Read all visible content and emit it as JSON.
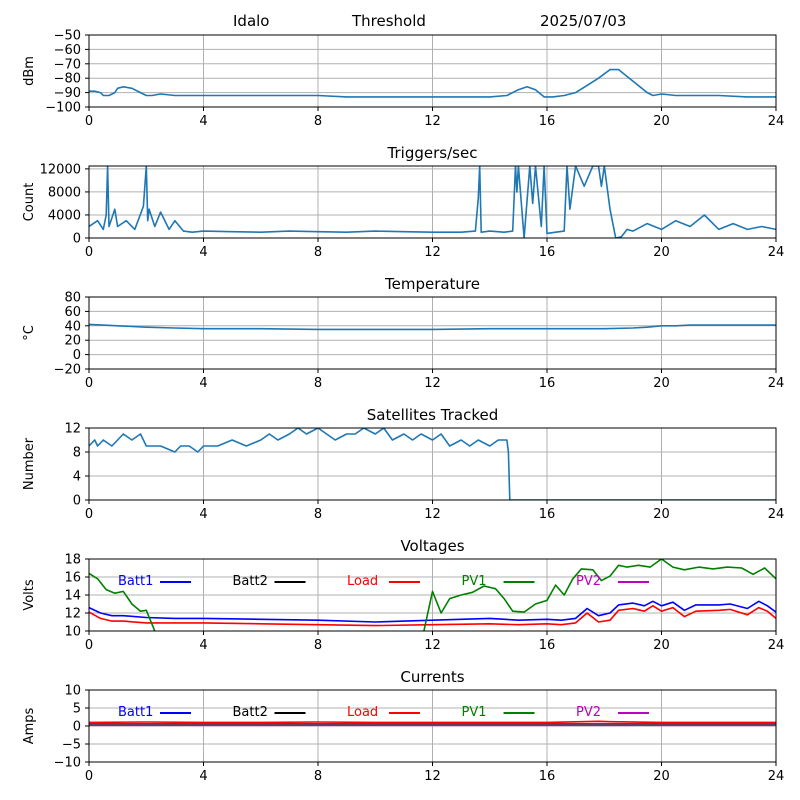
{
  "header": {
    "site": "Idalo",
    "title": "Threshold",
    "date": "2025/07/03"
  },
  "colors": {
    "series": "#1f77b4",
    "grid": "#b0b0b0",
    "batt1": "#0000ff",
    "batt2": "#000000",
    "load": "#ff0000",
    "pv1": "#008000",
    "pv2": "#bf00bf"
  },
  "chart_data": [
    {
      "type": "line",
      "title": "",
      "ylabel": "dBm",
      "xlim": [
        0,
        24
      ],
      "ylim": [
        -100,
        -50
      ],
      "xticks": [
        0,
        4,
        8,
        12,
        16,
        20,
        24
      ],
      "yticks": [
        -100,
        -90,
        -80,
        -70,
        -60,
        -50
      ],
      "grid": true,
      "series": [
        {
          "color": "#1f77b4",
          "x": [
            0,
            0.2,
            0.4,
            0.5,
            0.7,
            0.9,
            1.0,
            1.2,
            1.5,
            1.8,
            2.0,
            2.2,
            2.5,
            3,
            4,
            5,
            6,
            7,
            8,
            9,
            10,
            11,
            12,
            13,
            14,
            14.6,
            15.0,
            15.3,
            15.6,
            15.9,
            16.2,
            16.6,
            17.0,
            17.4,
            17.8,
            18.2,
            18.5,
            19.0,
            19.5,
            19.7,
            20.0,
            20.5,
            21,
            22,
            23,
            24
          ],
          "y": [
            -89,
            -89,
            -90,
            -92,
            -92,
            -90,
            -87,
            -86,
            -87,
            -90,
            -92,
            -92,
            -91,
            -92,
            -92,
            -92,
            -92,
            -92,
            -92,
            -93,
            -93,
            -93,
            -93,
            -93,
            -93,
            -92,
            -88,
            -86,
            -88,
            -93,
            -93,
            -92,
            -90,
            -85,
            -80,
            -74,
            -74,
            -82,
            -90,
            -92,
            -91,
            -92,
            -92,
            -92,
            -93,
            -93
          ]
        }
      ]
    },
    {
      "type": "line",
      "title": "Triggers/sec",
      "ylabel": "Count",
      "xlim": [
        0,
        24
      ],
      "ylim": [
        0,
        12500
      ],
      "xticks": [
        0,
        4,
        8,
        12,
        16,
        20,
        24
      ],
      "yticks": [
        0,
        4000,
        8000,
        12000
      ],
      "grid": true,
      "series": [
        {
          "color": "#1f77b4",
          "x": [
            0,
            0.3,
            0.5,
            0.6,
            0.65,
            0.7,
            0.9,
            1.0,
            1.3,
            1.6,
            1.9,
            2.0,
            2.05,
            2.1,
            2.3,
            2.5,
            2.8,
            3.0,
            3.3,
            3.6,
            4,
            5,
            6,
            7,
            8,
            9,
            10,
            11,
            12,
            13,
            13.5,
            13.6,
            13.65,
            13.7,
            14,
            14.5,
            14.8,
            14.9,
            14.95,
            15.0,
            15.2,
            15.4,
            15.5,
            15.6,
            15.8,
            15.9,
            16.0,
            16.3,
            16.6,
            16.7,
            16.8,
            17.0,
            17.3,
            17.6,
            17.8,
            17.9,
            18.0,
            18.2,
            18.4,
            18.6,
            18.8,
            19.0,
            19.5,
            20,
            20.5,
            21,
            21.5,
            22,
            22.5,
            23,
            23.5,
            24
          ],
          "y": [
            2000,
            3000,
            1500,
            4000,
            12500,
            2000,
            5000,
            2000,
            3000,
            1500,
            5500,
            12500,
            3000,
            5000,
            2000,
            4500,
            1500,
            3000,
            1200,
            1000,
            1200,
            1100,
            1000,
            1200,
            1100,
            1000,
            1200,
            1100,
            1000,
            1000,
            1200,
            7000,
            12500,
            1000,
            1200,
            1000,
            1200,
            12500,
            8000,
            12500,
            0,
            12500,
            6000,
            12500,
            2000,
            12500,
            800,
            1000,
            1200,
            12500,
            5000,
            12500,
            9000,
            12500,
            12500,
            9000,
            12500,
            5000,
            0,
            200,
            1500,
            1200,
            2500,
            1500,
            3000,
            2000,
            4000,
            1500,
            2500,
            1500,
            2000,
            1500
          ]
        }
      ]
    },
    {
      "type": "line",
      "title": "Temperature",
      "ylabel": "°C",
      "xlim": [
        0,
        24
      ],
      "ylim": [
        -20,
        80
      ],
      "xticks": [
        0,
        4,
        8,
        12,
        16,
        20,
        24
      ],
      "yticks": [
        -20,
        0,
        20,
        40,
        60,
        80
      ],
      "grid": true,
      "series": [
        {
          "color": "#1f77b4",
          "x": [
            0,
            0.5,
            1,
            2,
            3,
            4,
            6,
            8,
            10,
            12,
            14,
            16,
            18,
            19,
            19.5,
            20,
            20.5,
            21,
            22,
            23,
            24
          ],
          "y": [
            42,
            41,
            40,
            38,
            37,
            36,
            36,
            35,
            35,
            35,
            36,
            36,
            36,
            37,
            38,
            40,
            40,
            41,
            41,
            41,
            41
          ]
        }
      ]
    },
    {
      "type": "line",
      "title": "Satellites Tracked",
      "ylabel": "Number",
      "xlim": [
        0,
        24
      ],
      "ylim": [
        0,
        12
      ],
      "xticks": [
        0,
        4,
        8,
        12,
        16,
        20,
        24
      ],
      "yticks": [
        0,
        4,
        8,
        12
      ],
      "grid": true,
      "series": [
        {
          "color": "#1f77b4",
          "x": [
            0,
            0.2,
            0.3,
            0.5,
            0.8,
            1.0,
            1.2,
            1.5,
            1.8,
            2.0,
            2.5,
            3.0,
            3.2,
            3.5,
            3.8,
            4.0,
            4.5,
            5.0,
            5.5,
            6.0,
            6.3,
            6.6,
            7.0,
            7.3,
            7.6,
            8.0,
            8.3,
            8.6,
            9.0,
            9.3,
            9.6,
            10.0,
            10.3,
            10.6,
            11.0,
            11.3,
            11.6,
            12.0,
            12.3,
            12.6,
            13.0,
            13.3,
            13.6,
            14.0,
            14.3,
            14.6,
            14.65,
            14.7,
            15,
            16,
            20,
            24
          ],
          "y": [
            9,
            10,
            9,
            10,
            9,
            10,
            11,
            10,
            11,
            9,
            9,
            8,
            9,
            9,
            8,
            9,
            9,
            10,
            9,
            10,
            11,
            10,
            11,
            12,
            11,
            12,
            11,
            10,
            11,
            11,
            12,
            11,
            12,
            10,
            11,
            10,
            11,
            10,
            11,
            9,
            10,
            9,
            10,
            9,
            10,
            10,
            8,
            0,
            0,
            0,
            0,
            0
          ]
        }
      ]
    },
    {
      "type": "line",
      "title": "Voltages",
      "ylabel": "Volts",
      "xlim": [
        0,
        24
      ],
      "ylim": [
        10,
        18
      ],
      "xticks": [
        0,
        4,
        8,
        12,
        16,
        20,
        24
      ],
      "yticks": [
        10,
        12,
        14,
        16,
        18
      ],
      "grid": true,
      "legend": "top",
      "series": [
        {
          "name": "Batt1",
          "color": "#0000ff",
          "x": [
            0,
            0.4,
            0.8,
            1.2,
            2,
            3,
            4,
            6,
            8,
            10,
            12,
            14,
            15,
            16,
            16.5,
            17,
            17.4,
            17.8,
            18.2,
            18.5,
            19,
            19.4,
            19.7,
            20,
            20.4,
            20.8,
            21.2,
            22,
            22.4,
            23,
            23.4,
            23.7,
            24
          ],
          "y": [
            12.6,
            12.0,
            11.7,
            11.7,
            11.5,
            11.4,
            11.4,
            11.3,
            11.2,
            11.0,
            11.2,
            11.4,
            11.2,
            11.3,
            11.2,
            11.4,
            12.5,
            11.7,
            12.0,
            12.9,
            13.1,
            12.8,
            13.3,
            12.8,
            13.2,
            12.3,
            12.9,
            12.9,
            13.0,
            12.5,
            13.3,
            12.8,
            12.1
          ]
        },
        {
          "name": "Batt2",
          "color": "#000000",
          "x": [],
          "y": []
        },
        {
          "name": "Load",
          "color": "#ff0000",
          "x": [
            0,
            0.4,
            0.8,
            1.2,
            2,
            3,
            4,
            6,
            8,
            10,
            12,
            14,
            15,
            16,
            16.5,
            17,
            17.4,
            17.8,
            18.2,
            18.5,
            19,
            19.4,
            19.7,
            20,
            20.4,
            20.8,
            21.2,
            22,
            22.4,
            23,
            23.4,
            23.7,
            24
          ],
          "y": [
            12.1,
            11.4,
            11.1,
            11.1,
            10.9,
            10.9,
            10.9,
            10.8,
            10.7,
            10.6,
            10.7,
            10.8,
            10.7,
            10.8,
            10.7,
            10.9,
            12.0,
            11.0,
            11.2,
            12.3,
            12.5,
            12.2,
            12.8,
            12.2,
            12.6,
            11.6,
            12.2,
            12.3,
            12.4,
            11.8,
            12.6,
            12.2,
            11.4
          ]
        },
        {
          "name": "PV1",
          "color": "#008000",
          "x": [
            0,
            0.3,
            0.6,
            0.9,
            1.2,
            1.5,
            1.8,
            2.0,
            2.3,
            2.5,
            11.7,
            12.0,
            12.3,
            12.6,
            13.0,
            13.4,
            13.8,
            14.2,
            14.5,
            14.8,
            15.2,
            15.6,
            16.0,
            16.3,
            16.6,
            16.9,
            17.2,
            17.6,
            17.9,
            18.2,
            18.5,
            18.8,
            19.2,
            19.6,
            20.0,
            20.4,
            20.8,
            21.3,
            21.8,
            22.3,
            22.8,
            23.2,
            23.6,
            24
          ],
          "y": [
            16.4,
            15.8,
            14.6,
            14.2,
            14.4,
            13.0,
            12.2,
            12.3,
            10.0,
            6.0,
            10.0,
            14.4,
            12.0,
            13.6,
            14.0,
            14.3,
            15.0,
            14.7,
            13.6,
            12.2,
            12.1,
            13.0,
            13.4,
            15.1,
            14.0,
            15.8,
            16.9,
            16.8,
            15.6,
            16.1,
            17.3,
            17.1,
            17.3,
            17.1,
            18.0,
            17.1,
            16.8,
            17.1,
            16.9,
            17.1,
            17.0,
            16.3,
            17.0,
            15.8
          ]
        },
        {
          "name": "PV2",
          "color": "#bf00bf",
          "x": [],
          "y": []
        }
      ]
    },
    {
      "type": "line",
      "title": "Currents",
      "ylabel": "Amps",
      "xlim": [
        0,
        24
      ],
      "ylim": [
        -10,
        10
      ],
      "xticks": [
        0,
        4,
        8,
        12,
        16,
        20,
        24
      ],
      "yticks": [
        -10,
        -5,
        0,
        5,
        10
      ],
      "grid": true,
      "legend": "top",
      "series": [
        {
          "name": "Batt1",
          "color": "#0000ff",
          "x": [
            0,
            4,
            8,
            12,
            16,
            20,
            24
          ],
          "y": [
            0.3,
            0.3,
            0.3,
            0.3,
            0.3,
            0.3,
            0.3
          ]
        },
        {
          "name": "Batt2",
          "color": "#000000",
          "x": [],
          "y": []
        },
        {
          "name": "Load",
          "color": "#ff0000",
          "x": [
            0,
            2,
            4,
            6,
            8,
            10,
            12,
            14,
            16,
            17.8,
            18.2,
            20,
            22,
            24
          ],
          "y": [
            1.0,
            1.1,
            1.0,
            1.0,
            1.1,
            1.0,
            1.0,
            1.0,
            1.0,
            1.3,
            1.2,
            1.0,
            1.0,
            1.0
          ]
        },
        {
          "name": "PV1",
          "color": "#008000",
          "x": [
            0,
            4,
            8,
            12,
            16,
            20,
            24
          ],
          "y": [
            0.6,
            0.6,
            0.6,
            0.6,
            0.6,
            0.6,
            0.6
          ]
        },
        {
          "name": "PV2",
          "color": "#bf00bf",
          "x": [
            0,
            4,
            8,
            12,
            16,
            20,
            24
          ],
          "y": [
            0.2,
            0.2,
            0.2,
            0.2,
            0.2,
            0.2,
            0.2
          ]
        }
      ]
    }
  ]
}
